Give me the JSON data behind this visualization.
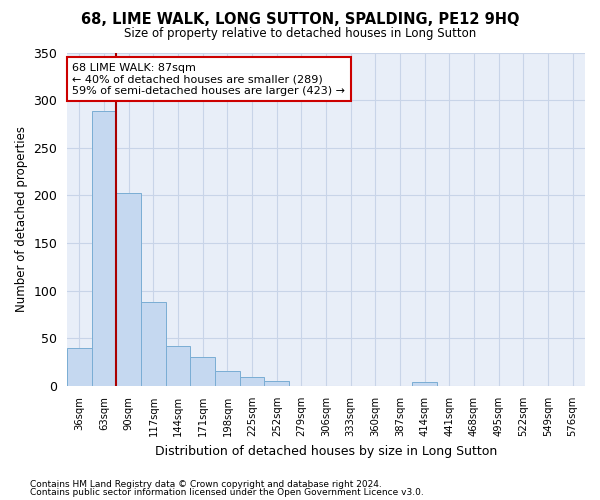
{
  "title": "68, LIME WALK, LONG SUTTON, SPALDING, PE12 9HQ",
  "subtitle": "Size of property relative to detached houses in Long Sutton",
  "xlabel": "Distribution of detached houses by size in Long Sutton",
  "ylabel": "Number of detached properties",
  "footnote1": "Contains HM Land Registry data © Crown copyright and database right 2024.",
  "footnote2": "Contains public sector information licensed under the Open Government Licence v3.0.",
  "bar_labels": [
    "36sqm",
    "63sqm",
    "90sqm",
    "117sqm",
    "144sqm",
    "171sqm",
    "198sqm",
    "225sqm",
    "252sqm",
    "279sqm",
    "306sqm",
    "333sqm",
    "360sqm",
    "387sqm",
    "414sqm",
    "441sqm",
    "468sqm",
    "495sqm",
    "522sqm",
    "549sqm",
    "576sqm"
  ],
  "bar_values": [
    40,
    289,
    203,
    88,
    42,
    30,
    16,
    9,
    5,
    0,
    0,
    0,
    0,
    0,
    4,
    0,
    0,
    0,
    0,
    0,
    0
  ],
  "bar_color": "#c5d8f0",
  "bar_edge_color": "#7aadd4",
  "grid_color": "#c8d4e8",
  "background_color": "#e8eef8",
  "vline_color": "#aa0000",
  "annotation_text": "68 LIME WALK: 87sqm\n← 40% of detached houses are smaller (289)\n59% of semi-detached houses are larger (423) →",
  "annotation_box_color": "#ffffff",
  "annotation_box_edge": "#cc0000",
  "ylim": [
    0,
    350
  ],
  "yticks": [
    0,
    50,
    100,
    150,
    200,
    250,
    300,
    350
  ]
}
